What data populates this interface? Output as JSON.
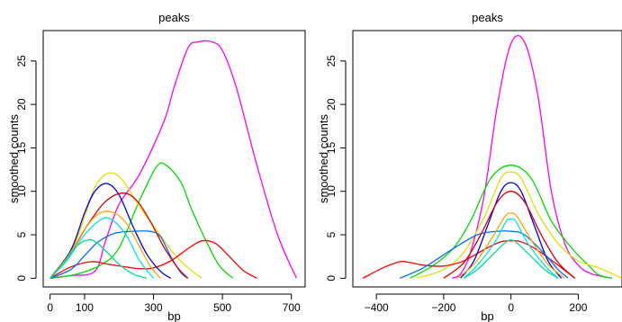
{
  "chart_data": [
    {
      "type": "line",
      "title": "peaks",
      "xlabel": "bp",
      "ylabel": "smoothed counts",
      "xlim": [
        -20,
        740
      ],
      "ylim": [
        -1,
        28.5
      ],
      "xticks": [
        0,
        100,
        300,
        500,
        700
      ],
      "yticks": [
        0,
        5,
        10,
        15,
        20,
        25
      ],
      "grid": false,
      "series": [
        {
          "color": "#ff00ff",
          "x": [
            0,
            60,
            130,
            160,
            200,
            260,
            330,
            360,
            400,
            430,
            470,
            500,
            540,
            600,
            660,
            715
          ],
          "y": [
            0,
            0.3,
            0.8,
            4.2,
            8.5,
            12,
            18,
            22,
            26.5,
            27.2,
            27.2,
            26.2,
            22,
            13,
            5,
            0
          ]
        },
        {
          "color": "#00dd00",
          "x": [
            0,
            80,
            150,
            200,
            260,
            310,
            340,
            380,
            410,
            450,
            490,
            530
          ],
          "y": [
            0,
            0.5,
            1.6,
            3.5,
            9,
            12.9,
            12.9,
            11,
            8,
            4.5,
            1.5,
            0
          ]
        },
        {
          "color": "#e0e000",
          "x": [
            0,
            60,
            100,
            130,
            170,
            210,
            260,
            310,
            360,
            400,
            440
          ],
          "y": [
            0,
            3,
            7,
            10.5,
            12.1,
            11.3,
            8.2,
            5.5,
            2.8,
            1.2,
            0
          ]
        },
        {
          "color": "#ff0000",
          "x": [
            0,
            60,
            120,
            170,
            220,
            260,
            300,
            350,
            400,
            440,
            480,
            520,
            560,
            600
          ],
          "y": [
            0,
            1.3,
            1.9,
            1.6,
            1.3,
            1.1,
            1.2,
            2,
            3.4,
            4.3,
            4,
            2.5,
            0.9,
            0
          ]
        },
        {
          "color": "#0000ee",
          "x": [
            0,
            60,
            100,
            130,
            165,
            200,
            240,
            280,
            320,
            350
          ],
          "y": [
            0,
            3.2,
            7.5,
            10,
            10.9,
            9.6,
            6,
            2.8,
            0.8,
            0
          ]
        },
        {
          "color": "#0070ff",
          "x": [
            0,
            60,
            100,
            140,
            190,
            240,
            290,
            320,
            350,
            380,
            400
          ],
          "y": [
            0,
            1,
            2.6,
            4.2,
            5.2,
            5.4,
            5.4,
            4.8,
            2.5,
            0.6,
            0
          ]
        },
        {
          "color": "#dd0000",
          "x": [
            0,
            60,
            110,
            160,
            210,
            250,
            290,
            330,
            370,
            400
          ],
          "y": [
            0,
            3,
            6.2,
            8.8,
            9.8,
            9,
            6.6,
            3.6,
            1.2,
            0
          ]
        },
        {
          "color": "#ffa500",
          "x": [
            0,
            50,
            100,
            140,
            180,
            220,
            260,
            290,
            320
          ],
          "y": [
            0,
            2.4,
            5.6,
            7.4,
            7.6,
            6.4,
            3.6,
            1.4,
            0
          ]
        },
        {
          "color": "#00e5e5",
          "x": [
            0,
            50,
            100,
            150,
            180,
            220,
            260,
            300
          ],
          "y": [
            0,
            2.1,
            5,
            6.8,
            6.7,
            5,
            2,
            0
          ]
        },
        {
          "color": "#00e090",
          "x": [
            0,
            40,
            80,
            120,
            160,
            200,
            240,
            280
          ],
          "y": [
            0,
            1.8,
            3.8,
            4.4,
            3.2,
            1.6,
            0.5,
            0
          ]
        }
      ]
    },
    {
      "type": "line",
      "title": "peaks",
      "xlabel": "bp",
      "ylabel": "smoothed counts",
      "xlim": [
        -470,
        330
      ],
      "ylim": [
        -1,
        28.5
      ],
      "xticks": [
        -400,
        -200,
        0,
        200
      ],
      "yticks": [
        0,
        5,
        10,
        15,
        20,
        25
      ],
      "grid": false,
      "series": [
        {
          "color": "#ff00ff",
          "x": [
            -175,
            -150,
            -120,
            -80,
            -40,
            0,
            40,
            80,
            120,
            160,
            200,
            240,
            300
          ],
          "y": [
            0,
            0.5,
            3,
            9.5,
            20,
            27,
            27.2,
            21,
            10,
            4,
            1.5,
            0.5,
            0
          ]
        },
        {
          "color": "#00dd00",
          "x": [
            -300,
            -230,
            -170,
            -120,
            -60,
            0,
            60,
            120,
            180,
            230,
            260,
            300
          ],
          "y": [
            0,
            1.5,
            3.5,
            6.6,
            11.5,
            13,
            11.5,
            6.6,
            3.5,
            1.5,
            0.4,
            0
          ]
        },
        {
          "color": "#e0e000",
          "x": [
            -280,
            -200,
            -140,
            -80,
            -30,
            0,
            30,
            80,
            140,
            200,
            260,
            330
          ],
          "y": [
            0,
            1,
            3,
            7,
            11.5,
            12.2,
            11.5,
            7.5,
            4,
            2,
            1.2,
            0
          ]
        },
        {
          "color": "#ff0000",
          "x": [
            -440,
            -380,
            -330,
            -300,
            -260,
            -200,
            -140,
            -80,
            -30,
            0,
            30,
            80,
            140,
            190
          ],
          "y": [
            0,
            1.2,
            1.9,
            1.8,
            1.5,
            1.4,
            2,
            3.3,
            4.2,
            4.3,
            4.2,
            3.2,
            1.5,
            0
          ]
        },
        {
          "color": "#0000ee",
          "x": [
            -150,
            -110,
            -70,
            -30,
            0,
            30,
            70,
            110,
            150
          ],
          "y": [
            0,
            2,
            6,
            10,
            11,
            10,
            6,
            2,
            0
          ]
        },
        {
          "color": "#0070ff",
          "x": [
            -330,
            -260,
            -180,
            -100,
            -40,
            0,
            40,
            100,
            140,
            170
          ],
          "y": [
            0,
            1.2,
            3.2,
            5,
            5.4,
            5.4,
            5,
            2.8,
            1,
            0
          ]
        },
        {
          "color": "#dd0000",
          "x": [
            -200,
            -140,
            -90,
            -40,
            0,
            40,
            90,
            140,
            190
          ],
          "y": [
            0,
            1.8,
            5,
            8.8,
            10,
            8.8,
            5,
            1.8,
            0
          ]
        },
        {
          "color": "#ffa500",
          "x": [
            -160,
            -110,
            -60,
            -20,
            0,
            20,
            60,
            110,
            160
          ],
          "y": [
            0,
            1.6,
            4.4,
            7,
            7.5,
            7,
            4.4,
            1.6,
            0
          ]
        },
        {
          "color": "#00e5e5",
          "x": [
            -140,
            -100,
            -50,
            -15,
            0,
            15,
            50,
            100,
            140
          ],
          "y": [
            0,
            1.5,
            4,
            6.5,
            6.8,
            6.5,
            4,
            1.5,
            0
          ]
        },
        {
          "color": "#00e090",
          "x": [
            -140,
            -100,
            -60,
            -20,
            0,
            20,
            60,
            100,
            140
          ],
          "y": [
            0,
            1,
            2.5,
            4,
            4.4,
            4,
            2.5,
            1,
            0
          ]
        }
      ]
    }
  ]
}
